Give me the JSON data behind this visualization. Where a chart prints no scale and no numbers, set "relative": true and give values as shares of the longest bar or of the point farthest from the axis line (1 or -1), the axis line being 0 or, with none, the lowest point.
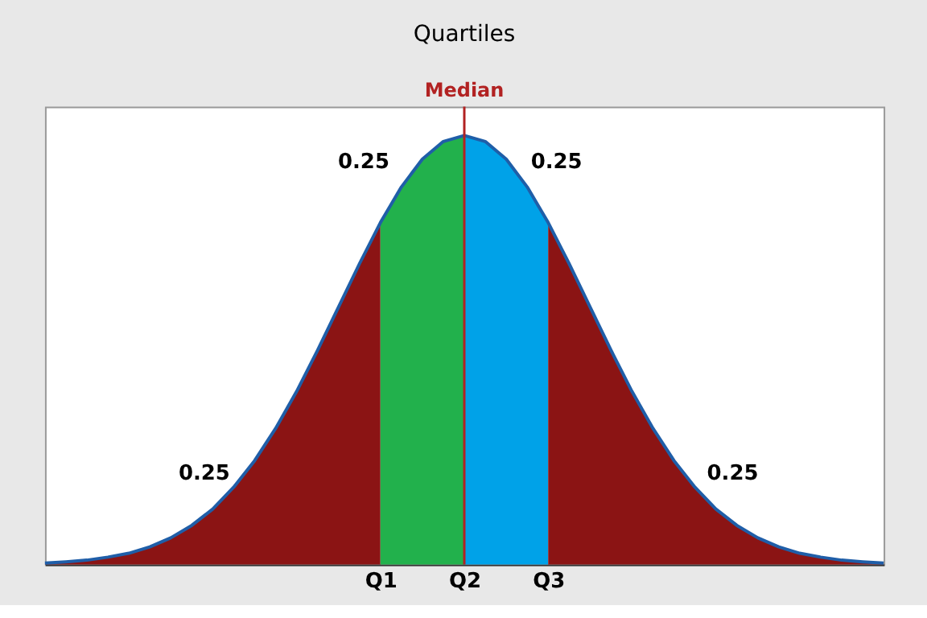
{
  "chart_data": {
    "type": "area",
    "title": "Quartiles",
    "relative": true,
    "grid": false,
    "categories": [
      null,
      null,
      null,
      null,
      null,
      null,
      null,
      null,
      null,
      null,
      null,
      null,
      null,
      null,
      null,
      null,
      "Q1",
      null,
      null,
      null,
      "Q2",
      null,
      null,
      null,
      "Q3",
      null,
      null,
      null,
      null,
      null,
      null,
      null,
      null,
      null,
      null,
      null,
      null,
      null,
      null,
      null,
      null
    ],
    "series": [
      {
        "color": "#8b1414",
        "values": [
          0.003,
          0.006,
          0.01,
          0.017,
          0.026,
          0.041,
          0.062,
          0.091,
          0.129,
          0.18,
          0.242,
          0.317,
          0.403,
          0.499,
          0.6,
          0.701,
          0.797,
          null,
          null,
          null,
          null,
          null,
          null,
          null,
          null,
          null,
          null,
          null,
          null,
          null,
          null,
          null,
          null,
          null,
          null,
          null,
          null,
          null,
          null,
          null,
          null
        ]
      },
      {
        "color": "#22b14c",
        "values": [
          null,
          null,
          null,
          null,
          null,
          null,
          null,
          null,
          null,
          null,
          null,
          null,
          null,
          null,
          null,
          null,
          0.797,
          0.88,
          0.945,
          0.986,
          1,
          null,
          null,
          null,
          null,
          null,
          null,
          null,
          null,
          null,
          null,
          null,
          null,
          null,
          null,
          null,
          null,
          null,
          null,
          null,
          null
        ]
      },
      {
        "color": "#00a2e8",
        "values": [
          null,
          null,
          null,
          null,
          null,
          null,
          null,
          null,
          null,
          null,
          null,
          null,
          null,
          null,
          null,
          null,
          null,
          null,
          null,
          null,
          1,
          0.986,
          0.945,
          0.88,
          0.797,
          null,
          null,
          null,
          null,
          null,
          null,
          null,
          null,
          null,
          null,
          null,
          null,
          null,
          null,
          null,
          null
        ]
      },
      {
        "color": "#8b1414",
        "values": [
          null,
          null,
          null,
          null,
          null,
          null,
          null,
          null,
          null,
          null,
          null,
          null,
          null,
          null,
          null,
          null,
          null,
          null,
          null,
          null,
          null,
          null,
          null,
          null,
          0.797,
          0.701,
          0.6,
          0.499,
          0.403,
          0.317,
          0.242,
          0.18,
          0.129,
          0.091,
          0.062,
          0.041,
          0.026,
          0.017,
          0.01,
          0.006,
          0.003
        ]
      },
      {
        "type": "line",
        "color": "#1f5ea8",
        "values": [
          0.003,
          0.006,
          0.01,
          0.017,
          0.026,
          0.041,
          0.062,
          0.091,
          0.129,
          0.18,
          0.242,
          0.317,
          0.403,
          0.499,
          0.6,
          0.701,
          0.797,
          0.88,
          0.945,
          0.986,
          1,
          0.986,
          0.945,
          0.88,
          0.797,
          0.701,
          0.6,
          0.499,
          0.403,
          0.317,
          0.242,
          0.18,
          0.129,
          0.091,
          0.062,
          0.041,
          0.026,
          0.017,
          0.01,
          0.006,
          0.003
        ]
      }
    ],
    "ref_lines": [
      {
        "axis": "x",
        "value": "Q2",
        "label": "Median",
        "color": "#b22222"
      }
    ],
    "annotations": [
      "0.25",
      "0.25",
      "0.25",
      "0.25"
    ]
  }
}
